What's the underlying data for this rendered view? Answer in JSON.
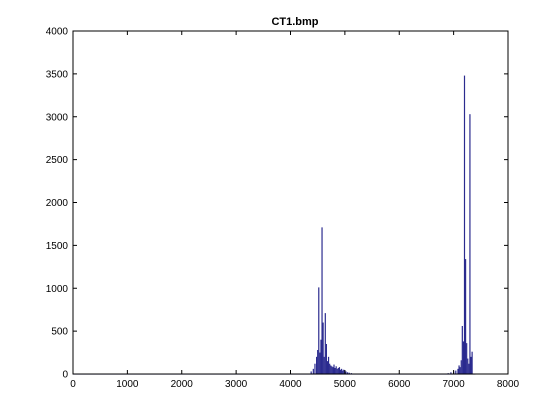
{
  "chart_data": {
    "type": "bar",
    "title": "CT1.bmp",
    "xlabel": "",
    "ylabel": "",
    "xlim": [
      0,
      8000
    ],
    "ylim": [
      0,
      4000
    ],
    "xticks": [
      0,
      1000,
      2000,
      3000,
      4000,
      5000,
      6000,
      7000,
      8000
    ],
    "yticks": [
      0,
      500,
      1000,
      1500,
      2000,
      2500,
      3000,
      3500,
      4000
    ],
    "grid": false,
    "bar_color": "#2b2b8f",
    "baseline_level": 5,
    "x": [
      4380,
      4420,
      4450,
      4480,
      4500,
      4520,
      4540,
      4560,
      4580,
      4600,
      4620,
      4640,
      4660,
      4680,
      4700,
      4720,
      4740,
      4760,
      4780,
      4800,
      4820,
      4840,
      4860,
      4880,
      4900,
      4920,
      4940,
      4960,
      4980,
      5000,
      5020,
      5050,
      5080,
      5120,
      6900,
      6950,
      7000,
      7040,
      7080,
      7100,
      7120,
      7140,
      7160,
      7180,
      7200,
      7220,
      7240,
      7260,
      7280,
      7300,
      7320,
      7340
    ],
    "values": [
      30,
      60,
      120,
      200,
      280,
      1010,
      250,
      400,
      1710,
      600,
      200,
      710,
      350,
      150,
      200,
      120,
      100,
      90,
      80,
      110,
      70,
      90,
      60,
      70,
      80,
      50,
      60,
      40,
      50,
      40,
      30,
      20,
      15,
      10,
      10,
      20,
      30,
      40,
      60,
      100,
      80,
      160,
      560,
      380,
      3480,
      1340,
      360,
      180,
      120,
      3030,
      200,
      260
    ]
  }
}
